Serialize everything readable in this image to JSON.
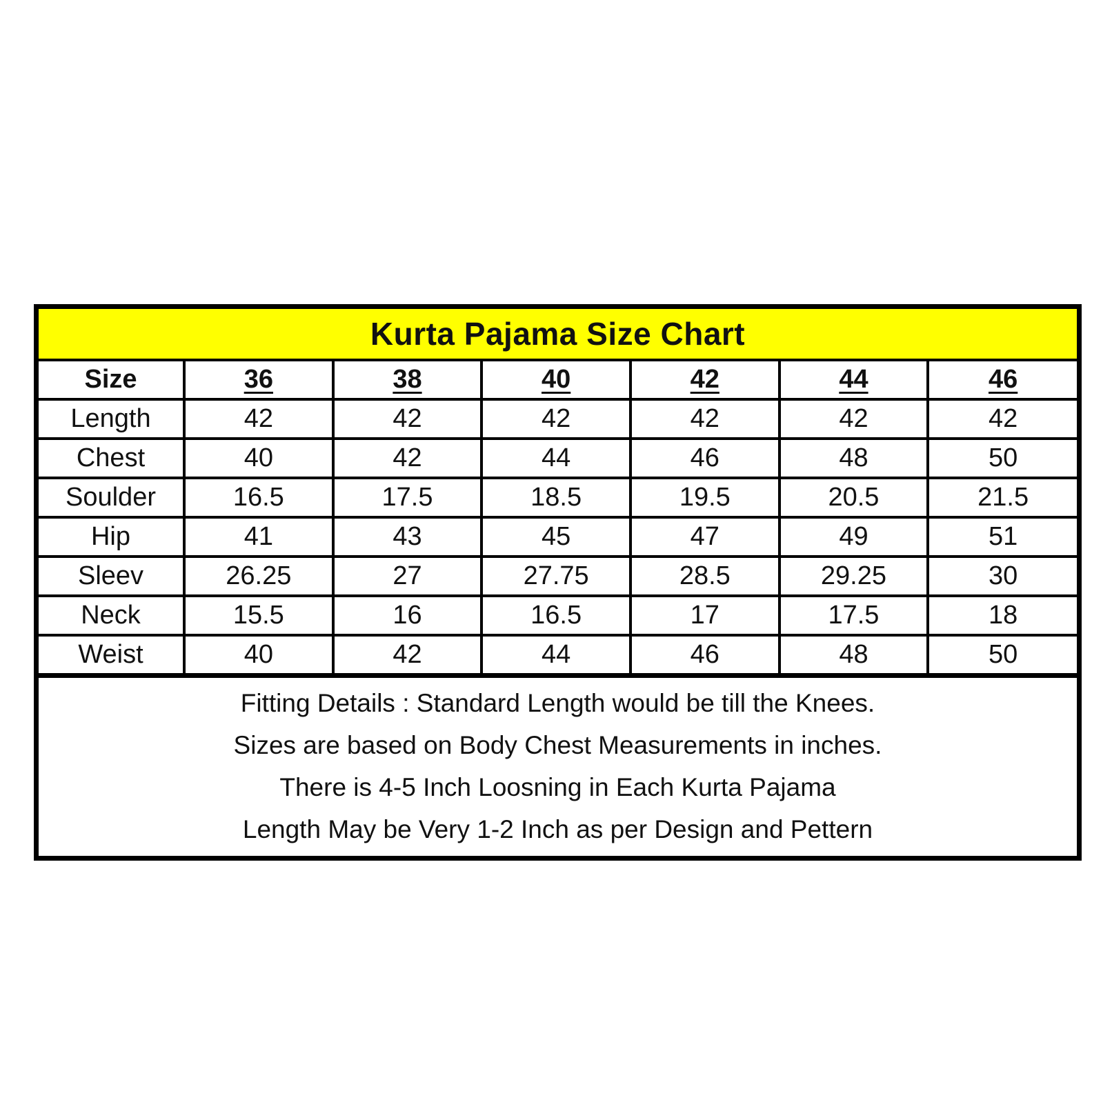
{
  "title": "Kurta Pajama Size Chart",
  "chart_data": {
    "type": "table",
    "title": "Kurta Pajama Size Chart",
    "header": [
      "Size",
      "36",
      "38",
      "40",
      "42",
      "44",
      "46"
    ],
    "rows": [
      {
        "label": "Length",
        "values": [
          "42",
          "42",
          "42",
          "42",
          "42",
          "42"
        ]
      },
      {
        "label": "Chest",
        "values": [
          "40",
          "42",
          "44",
          "46",
          "48",
          "50"
        ]
      },
      {
        "label": "Soulder",
        "values": [
          "16.5",
          "17.5",
          "18.5",
          "19.5",
          "20.5",
          "21.5"
        ]
      },
      {
        "label": "Hip",
        "values": [
          "41",
          "43",
          "45",
          "47",
          "49",
          "51"
        ]
      },
      {
        "label": "Sleev",
        "values": [
          "26.25",
          "27",
          "27.75",
          "28.5",
          "29.25",
          "30"
        ]
      },
      {
        "label": "Neck",
        "values": [
          "15.5",
          "16",
          "16.5",
          "17",
          "17.5",
          "18"
        ]
      },
      {
        "label": "Weist",
        "values": [
          "40",
          "42",
          "44",
          "46",
          "48",
          "50"
        ]
      }
    ]
  },
  "notes": [
    "Fitting Details : Standard Length would be till the Knees.",
    "Sizes are based on Body Chest Measurements in inches.",
    "There is 4-5 Inch Loosning in Each Kurta Pajama",
    "Length May be Very 1-2 Inch as per Design and Pettern"
  ],
  "colors": {
    "title_background": "#ffff00",
    "border": "#000000"
  }
}
